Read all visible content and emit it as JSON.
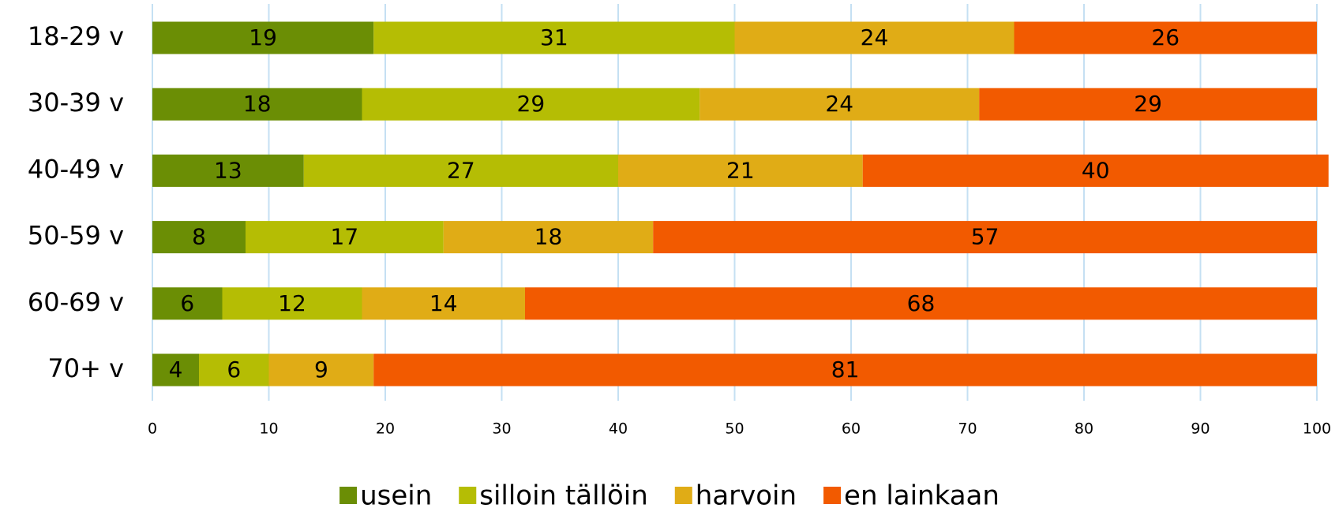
{
  "chart_data": {
    "type": "stacked-bar-horizontal",
    "categories": [
      "18-29 v",
      "30-39 v",
      "40-49 v",
      "50-59 v",
      "60-69 v",
      "70+ v"
    ],
    "series": [
      {
        "name": "usein",
        "color": "#6b8e05",
        "values": [
          19,
          18,
          13,
          8,
          6,
          4
        ]
      },
      {
        "name": "silloin tällöin",
        "color": "#b5bd04",
        "values": [
          31,
          29,
          27,
          17,
          12,
          6
        ]
      },
      {
        "name": "harvoin",
        "color": "#e0ac16",
        "values": [
          24,
          24,
          21,
          18,
          14,
          9
        ]
      },
      {
        "name": "en lainkaan",
        "color": "#f25a00",
        "values": [
          26,
          29,
          40,
          57,
          68,
          81
        ]
      }
    ],
    "xlim": [
      0,
      100
    ],
    "xticks": [
      0,
      10,
      20,
      30,
      40,
      50,
      60,
      70,
      80,
      90,
      100
    ],
    "grid": true,
    "legend": "bottom"
  }
}
